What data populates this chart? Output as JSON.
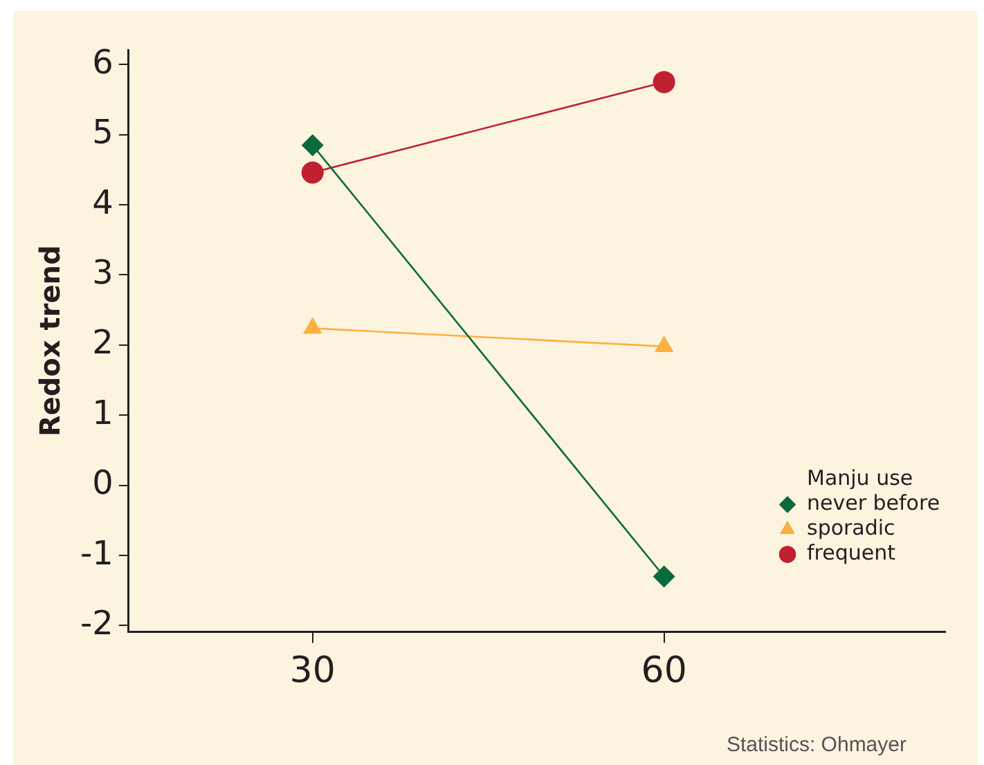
{
  "chart_data": {
    "type": "line",
    "ylabel": "Redox trend",
    "legend_title": "Manju use",
    "x": [
      30,
      60
    ],
    "xlim": [
      14.3,
      84
    ],
    "xticks": [
      30,
      60
    ],
    "ylim": [
      -2.09,
      6.21
    ],
    "yticks": [
      -2,
      -1,
      0,
      1,
      2,
      3,
      4,
      5,
      6
    ],
    "series": [
      {
        "name": "never before",
        "color": "#0b6a3a",
        "values": [
          4.85,
          -1.3
        ],
        "marker": "diamond"
      },
      {
        "name": "sporadic",
        "color": "#fbb040",
        "values": [
          2.24,
          1.98
        ],
        "marker": "triangle"
      },
      {
        "name": "frequent",
        "color": "#c0202f",
        "values": [
          4.46,
          5.75
        ],
        "marker": "circle"
      }
    ],
    "grid": false,
    "legend": "bottom right",
    "line_style": "solid",
    "annotations": [
      "Statistics: Ohmayer"
    ]
  }
}
